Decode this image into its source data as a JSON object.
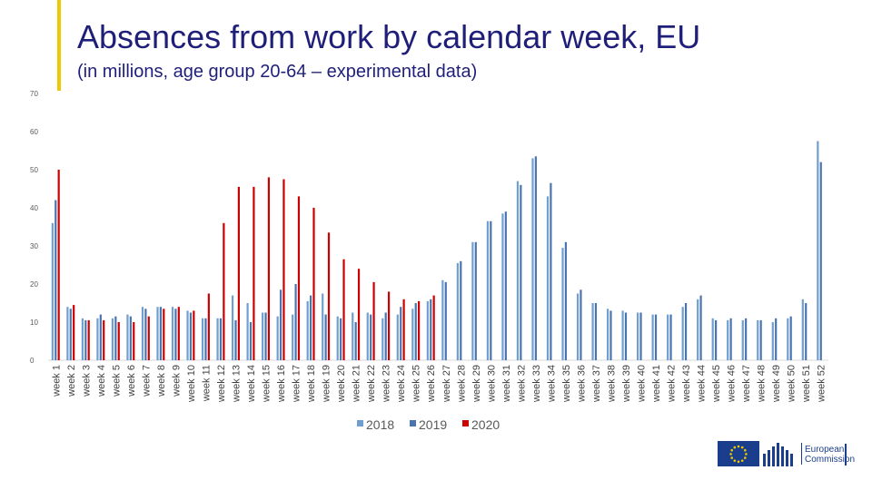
{
  "header": {
    "title": "Absences from work by calendar week, EU",
    "subtitle": "(in millions, age group 20-64 – experimental data)"
  },
  "logo": {
    "line1": "European",
    "line2": "Commission"
  },
  "chart_data": {
    "type": "bar",
    "title": "",
    "xlabel": "",
    "ylabel": "",
    "ylim": [
      0,
      70
    ],
    "yticks": [
      0,
      10,
      20,
      30,
      40,
      50,
      60,
      70
    ],
    "grid": false,
    "legend_position": "bottom",
    "categories": [
      "week 1",
      "week 2",
      "week 3",
      "week 4",
      "week 5",
      "week 6",
      "week 7",
      "week 8",
      "week 9",
      "week 10",
      "week 11",
      "week 12",
      "week 13",
      "week 14",
      "week 15",
      "week 16",
      "week 17",
      "week 18",
      "week 19",
      "week 20",
      "week 21",
      "week 22",
      "week 23",
      "week 24",
      "week 25",
      "week 26",
      "week 27",
      "week 28",
      "week 29",
      "week 30",
      "week 31",
      "week 32",
      "week 33",
      "week 34",
      "week 35",
      "week 36",
      "week 37",
      "week 38",
      "week 39",
      "week 40",
      "week 41",
      "week 42",
      "week 43",
      "week 44",
      "week 45",
      "week 46",
      "week 47",
      "week 48",
      "week 49",
      "week 50",
      "week 51",
      "week 52"
    ],
    "series": [
      {
        "name": "2018",
        "color": "#6f9fd0",
        "values": [
          36,
          14,
          11,
          11,
          11,
          12,
          14,
          14,
          14,
          13,
          11,
          11,
          17,
          15,
          12.5,
          11.5,
          12,
          15.5,
          17.5,
          11.5,
          12.5,
          12.5,
          11,
          12,
          13.5,
          15.5,
          21,
          25.5,
          31,
          36.5,
          38.5,
          47,
          53,
          43,
          29.5,
          17.5,
          15,
          13.5,
          13,
          12.5,
          12,
          12,
          14,
          16,
          11,
          10.5,
          10.5,
          10.5,
          10,
          11,
          16,
          57.5
        ]
      },
      {
        "name": "2019",
        "color": "#4a74b0",
        "values": [
          42,
          13.5,
          10.5,
          12,
          11.5,
          11.5,
          13.5,
          14,
          13.5,
          12.5,
          11,
          11,
          10.5,
          10,
          12.5,
          18.5,
          20,
          17,
          12,
          11,
          10,
          12,
          12.5,
          14,
          15,
          16,
          20.5,
          26,
          31,
          36.5,
          39,
          46,
          53.5,
          46.5,
          31,
          18.5,
          15,
          13,
          12.5,
          12.5,
          12,
          12,
          15,
          17,
          10.5,
          11,
          11,
          10.5,
          11,
          11.5,
          15,
          52
        ]
      },
      {
        "name": "2020",
        "color": "#cc0000",
        "values": [
          50,
          14.5,
          10.5,
          10.5,
          10,
          10,
          11.5,
          13.5,
          14,
          13,
          17.5,
          36,
          45.5,
          45.5,
          48,
          47.5,
          43,
          40,
          33.5,
          26.5,
          24,
          20.5,
          18,
          16,
          15.5,
          17,
          null,
          null,
          null,
          null,
          null,
          null,
          null,
          null,
          null,
          null,
          null,
          null,
          null,
          null,
          null,
          null,
          null,
          null,
          null,
          null,
          null,
          null,
          null,
          null,
          null,
          null
        ]
      }
    ]
  }
}
